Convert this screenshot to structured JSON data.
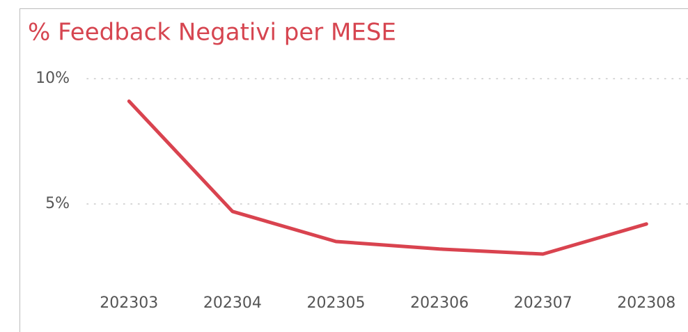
{
  "chart_data": {
    "type": "line",
    "title": "% Feedback Negativi per MESE",
    "categories": [
      "202303",
      "202304",
      "202305",
      "202306",
      "202307",
      "202308"
    ],
    "values": [
      9.1,
      4.7,
      3.5,
      3.2,
      3.0,
      4.2
    ],
    "color": "#d9434f",
    "ylim": [
      2,
      10.5
    ],
    "yticks": [
      {
        "value": 5,
        "label": "5%"
      },
      {
        "value": 10,
        "label": "10%"
      }
    ],
    "grid": true
  }
}
